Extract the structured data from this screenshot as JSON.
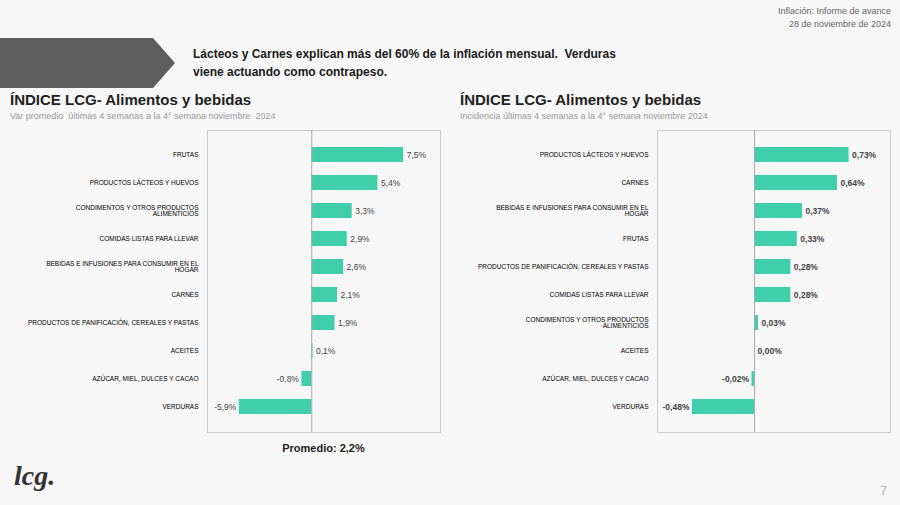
{
  "chart_data": [
    {
      "type": "bar",
      "title": "ÍNDICE LCG- Alimentos y bebidas",
      "subtitle": "Var promedio  últimas 4 semanas a la 4° semana noviembre  2024",
      "orientation": "horizontal",
      "categories": [
        "FRUTAS",
        "PRODUCTOS LÁCTEOS Y HUEVOS",
        "CONDIMENTOS Y OTROS PRODUCTOS\nALIMENTICIOS",
        "COMIDAS LISTAS PARA LLEVAR",
        "BEBIDAS E INFUSIONES PARA CONSUMIR EN EL\nHOGAR",
        "CARNES",
        "PRODUCTOS DE PANIFICACIÓN, CEREALES Y PASTAS",
        "ACEITES",
        "AZÚCAR, MIEL, DULCES Y CACAO",
        "VERDURAS"
      ],
      "values": [
        7.5,
        5.4,
        3.3,
        2.9,
        2.6,
        2.1,
        1.9,
        0.1,
        -0.8,
        -5.9
      ],
      "value_labels": [
        "7,5%",
        "5,4%",
        "3,3%",
        "2,9%",
        "2,6%",
        "2,1%",
        "1,9%",
        "0,1%",
        "-0,8%",
        "-5,9%"
      ],
      "color": "#3ecfaa",
      "xlim": [
        -8.5,
        10.5
      ],
      "xticks": [],
      "data_labels": true,
      "tick_labels": "y",
      "grid": false,
      "annotations": [
        "Lácteos y Carnes explican más del 60% de la inflación mensual.  Verduras",
        "viene actuando como contrapeso.",
        "Inflación: Informe de avance",
        "28 de noviembre de 2024",
        "Promedio: 2,2%",
        "lcg.",
        "7"
      ]
    },
    {
      "type": "bar",
      "title": "ÍNDICE LCG- Alimentos y bebidas",
      "subtitle": "Incidencia últimas 4 semanas a la 4° semana noviembre 2024",
      "orientation": "horizontal",
      "categories": [
        "PRODUCTOS LÁCTEOS Y HUEVOS",
        "CARNES",
        "BEBIDAS E INFUSIONES PARA CONSUMIR EN EL\nHOGAR",
        "FRUTAS",
        "PRODUCTOS DE PANIFICACIÓN, CEREALES Y PASTAS",
        "COMIDAS LISTAS PARA LLEVAR",
        "CONDIMENTOS Y OTROS PRODUCTOS\nALIMENTICIOS",
        "ACEITES",
        "AZÚCAR, MIEL, DULCES Y CACAO",
        "VERDURAS"
      ],
      "values": [
        0.73,
        0.64,
        0.37,
        0.33,
        0.28,
        0.28,
        0.03,
        0.0,
        -0.02,
        -0.48
      ],
      "value_labels": [
        "0,73%",
        "0,64%",
        "0,37%",
        "0,33%",
        "0,28%",
        "0,28%",
        "0,03%",
        "0,00%",
        "-0,02%",
        "-0,48%"
      ],
      "color": "#3ecfaa",
      "xlim": [
        -0.75,
        1.05
      ],
      "xticks": [],
      "data_labels": true,
      "tick_labels": "y",
      "grid": false
    }
  ]
}
